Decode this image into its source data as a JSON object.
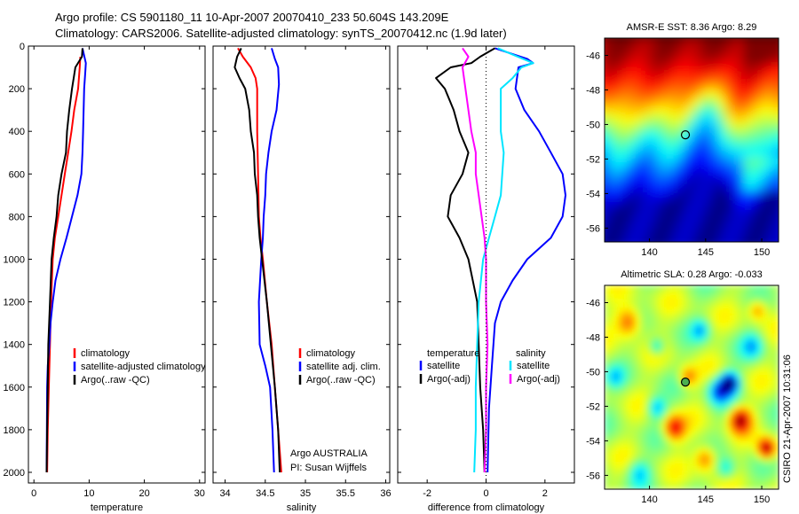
{
  "header": {
    "title_line1": "Argo profile: CS 5901180_11 10-Apr-2007 20070410_233 50.604S 143.209E",
    "title_line2": "Climatology: CARS2006. Satellite-adjusted climatology: synTS_20070412.nc (1.9d later)"
  },
  "colors": {
    "red": "#ff0000",
    "blue": "#0000ff",
    "black": "#000000",
    "cyan": "#00e5ff",
    "magenta": "#ff00ff"
  },
  "chart_data": [
    {
      "type": "line",
      "id": "temperature",
      "xlabel": "temperature",
      "xlim": [
        -1,
        31
      ],
      "ylim": [
        2050,
        0
      ],
      "xticks": [
        "0",
        "10",
        "20",
        "30"
      ],
      "yticks": [
        "0",
        "200",
        "400",
        "600",
        "800",
        "1000",
        "1200",
        "1400",
        "1600",
        "1800",
        "2000"
      ],
      "legend": [
        "climatology",
        "satellite-adjusted climatology",
        "Argo(..raw -QC)"
      ],
      "series": [
        {
          "name": "climatology",
          "color": "red",
          "points": [
            [
              8.4,
              50
            ],
            [
              8.3,
              100
            ],
            [
              8,
              200
            ],
            [
              7.3,
              300
            ],
            [
              6.8,
              400
            ],
            [
              6.2,
              500
            ],
            [
              5.6,
              600
            ],
            [
              5,
              700
            ],
            [
              4.4,
              800
            ],
            [
              3.8,
              900
            ],
            [
              3.4,
              1000
            ],
            [
              3.1,
              1200
            ],
            [
              2.9,
              1400
            ],
            [
              2.7,
              1600
            ],
            [
              2.5,
              1800
            ],
            [
              2.4,
              2000
            ]
          ]
        },
        {
          "name": "satellite-adjusted climatology",
          "color": "blue",
          "points": [
            [
              8.8,
              10
            ],
            [
              9.4,
              80
            ],
            [
              9.3,
              120
            ],
            [
              9.1,
              200
            ],
            [
              9,
              300
            ],
            [
              8.9,
              400
            ],
            [
              8.8,
              500
            ],
            [
              8.6,
              600
            ],
            [
              7.9,
              700
            ],
            [
              6.9,
              800
            ],
            [
              5.9,
              900
            ],
            [
              4.8,
              1000
            ],
            [
              3.9,
              1100
            ],
            [
              3.4,
              1200
            ],
            [
              3,
              1300
            ],
            [
              2.8,
              1400
            ],
            [
              2.5,
              1500
            ],
            [
              2.4,
              1600
            ],
            [
              2.3,
              2000
            ]
          ]
        },
        {
          "name": "Argo(..raw -QC)",
          "color": "black",
          "points": [
            [
              8.8,
              10
            ],
            [
              8.7,
              50
            ],
            [
              7.5,
              100
            ],
            [
              7.2,
              150
            ],
            [
              6.9,
              200
            ],
            [
              6.4,
              300
            ],
            [
              6,
              400
            ],
            [
              5.8,
              500
            ],
            [
              5,
              600
            ],
            [
              4.4,
              700
            ],
            [
              4.1,
              800
            ],
            [
              3.6,
              900
            ],
            [
              3.2,
              1000
            ],
            [
              2.9,
              1200
            ],
            [
              2.6,
              1400
            ],
            [
              2.5,
              1600
            ],
            [
              2.4,
              1800
            ],
            [
              2.3,
              2000
            ]
          ]
        }
      ]
    },
    {
      "type": "line",
      "id": "salinity",
      "xlabel": "salinity",
      "xlim": [
        33.85,
        36.05
      ],
      "ylim": [
        2050,
        0
      ],
      "xticks": [
        "34",
        "34.5",
        "35",
        "35.5",
        "36"
      ],
      "legend": [
        "climatology",
        "satellite adj. clim.",
        "Argo(..raw -QC)"
      ],
      "annotations": [
        "Argo AUSTRALIA",
        "PI: Susan Wijffels"
      ],
      "series": [
        {
          "name": "climatology",
          "color": "red",
          "points": [
            [
              34.16,
              10
            ],
            [
              34.22,
              50
            ],
            [
              34.32,
              100
            ],
            [
              34.38,
              150
            ],
            [
              34.4,
              200
            ],
            [
              34.4,
              400
            ],
            [
              34.41,
              600
            ],
            [
              34.42,
              800
            ],
            [
              34.44,
              900
            ],
            [
              34.47,
              1000
            ],
            [
              34.52,
              1200
            ],
            [
              34.58,
              1400
            ],
            [
              34.62,
              1600
            ],
            [
              34.66,
              1800
            ],
            [
              34.7,
              2000
            ]
          ]
        },
        {
          "name": "satellite adj. clim.",
          "color": "blue",
          "points": [
            [
              34.58,
              10
            ],
            [
              34.62,
              60
            ],
            [
              34.66,
              100
            ],
            [
              34.67,
              180
            ],
            [
              34.64,
              300
            ],
            [
              34.58,
              400
            ],
            [
              34.54,
              500
            ],
            [
              34.51,
              600
            ],
            [
              34.5,
              700
            ],
            [
              34.48,
              800
            ],
            [
              34.47,
              900
            ],
            [
              34.45,
              1000
            ],
            [
              34.42,
              1200
            ],
            [
              34.43,
              1400
            ],
            [
              34.5,
              1500
            ],
            [
              34.56,
              1600
            ],
            [
              34.59,
              1800
            ],
            [
              34.61,
              2000
            ]
          ]
        },
        {
          "name": "Argo(..raw -QC)",
          "color": "black",
          "points": [
            [
              34.2,
              10
            ],
            [
              34.15,
              50
            ],
            [
              34.12,
              100
            ],
            [
              34.18,
              150
            ],
            [
              34.25,
              200
            ],
            [
              34.3,
              300
            ],
            [
              34.32,
              400
            ],
            [
              34.36,
              500
            ],
            [
              34.37,
              600
            ],
            [
              34.4,
              700
            ],
            [
              34.41,
              800
            ],
            [
              34.43,
              900
            ],
            [
              34.46,
              1000
            ],
            [
              34.52,
              1200
            ],
            [
              34.57,
              1400
            ],
            [
              34.62,
              1600
            ],
            [
              34.66,
              1800
            ],
            [
              34.68,
              2000
            ]
          ]
        }
      ]
    },
    {
      "type": "line",
      "id": "difference",
      "xlabel": "difference from climatology",
      "xlim": [
        -3,
        3
      ],
      "ylim": [
        2050,
        0
      ],
      "xticks": [
        "-2",
        "0",
        "2"
      ],
      "legend_left_title": "temperature",
      "legend_right_title": "salinity",
      "legend_left": [
        "satellite",
        "Argo(-adj)"
      ],
      "legend_right": [
        "satellite",
        "Argo(-adj)"
      ],
      "series": [
        {
          "name": "temperature satellite",
          "color": "blue",
          "points": [
            [
              0.3,
              10
            ],
            [
              1.4,
              60
            ],
            [
              1.6,
              80
            ],
            [
              1.1,
              100
            ],
            [
              1,
              200
            ],
            [
              1.3,
              300
            ],
            [
              1.8,
              400
            ],
            [
              2.2,
              500
            ],
            [
              2.6,
              600
            ],
            [
              2.7,
              700
            ],
            [
              2.6,
              800
            ],
            [
              2.2,
              900
            ],
            [
              1.4,
              1000
            ],
            [
              0.9,
              1100
            ],
            [
              0.5,
              1200
            ],
            [
              0.3,
              1300
            ],
            [
              0.2,
              1500
            ],
            [
              0.1,
              1700
            ],
            [
              0.05,
              2000
            ]
          ]
        },
        {
          "name": "temperature Argo(-adj)",
          "color": "black",
          "points": [
            [
              0.3,
              10
            ],
            [
              -0.2,
              50
            ],
            [
              -0.5,
              80
            ],
            [
              -1.2,
              100
            ],
            [
              -1.7,
              150
            ],
            [
              -1.4,
              200
            ],
            [
              -1.1,
              300
            ],
            [
              -0.9,
              400
            ],
            [
              -0.6,
              500
            ],
            [
              -0.8,
              600
            ],
            [
              -1.2,
              700
            ],
            [
              -1.3,
              800
            ],
            [
              -0.9,
              900
            ],
            [
              -0.6,
              1000
            ],
            [
              -0.3,
              1200
            ],
            [
              -0.25,
              1400
            ],
            [
              -0.2,
              1600
            ],
            [
              -0.1,
              1800
            ],
            [
              -0.05,
              2000
            ]
          ]
        },
        {
          "name": "salinity satellite",
          "color": "cyan",
          "points": [
            [
              0.4,
              10
            ],
            [
              0.9,
              40
            ],
            [
              1.6,
              80
            ],
            [
              1.2,
              100
            ],
            [
              0.9,
              150
            ],
            [
              0.5,
              200
            ],
            [
              0.5,
              400
            ],
            [
              0.6,
              500
            ],
            [
              0.5,
              700
            ],
            [
              0.3,
              800
            ],
            [
              0.1,
              900
            ],
            [
              -0.1,
              1000
            ],
            [
              -0.25,
              1200
            ],
            [
              -0.3,
              1400
            ],
            [
              -0.35,
              1600
            ],
            [
              -0.35,
              1800
            ],
            [
              -0.4,
              2000
            ]
          ]
        },
        {
          "name": "salinity Argo(-adj)",
          "color": "magenta",
          "points": [
            [
              -0.8,
              10
            ],
            [
              -0.6,
              50
            ],
            [
              -0.8,
              100
            ],
            [
              -0.7,
              200
            ],
            [
              -0.6,
              300
            ],
            [
              -0.5,
              400
            ],
            [
              -0.35,
              500
            ],
            [
              -0.35,
              600
            ],
            [
              -0.25,
              700
            ],
            [
              -0.15,
              800
            ],
            [
              -0.05,
              900
            ],
            [
              0,
              1000
            ],
            [
              0,
              1200
            ],
            [
              0.05,
              1400
            ],
            [
              0,
              1600
            ],
            [
              0,
              1800
            ],
            [
              -0.05,
              2000
            ]
          ]
        }
      ]
    },
    {
      "type": "heatmap",
      "id": "sst",
      "title": "AMSR-E SST: 8.36 Argo: 8.29",
      "xlim": [
        136,
        151.5
      ],
      "ylim": [
        -56.8,
        -45
      ],
      "xticks": [
        "140",
        "145",
        "150"
      ],
      "yticks": [
        "-46",
        "-48",
        "-50",
        "-52",
        "-54",
        "-56"
      ],
      "marker": {
        "lon": 143.2,
        "lat": -50.6
      }
    },
    {
      "type": "heatmap",
      "id": "sla",
      "title": "Altimetric SLA: 0.28 Argo: -0.033",
      "xlim": [
        136,
        151.5
      ],
      "ylim": [
        -56.8,
        -45
      ],
      "xticks": [
        "140",
        "145",
        "150"
      ],
      "yticks": [
        "-46",
        "-48",
        "-50",
        "-52",
        "-54",
        "-56"
      ],
      "marker": {
        "lon": 143.2,
        "lat": -50.6
      }
    }
  ],
  "footer": {
    "credit": "CSIRO 21-Apr-2007 10:31:06"
  }
}
